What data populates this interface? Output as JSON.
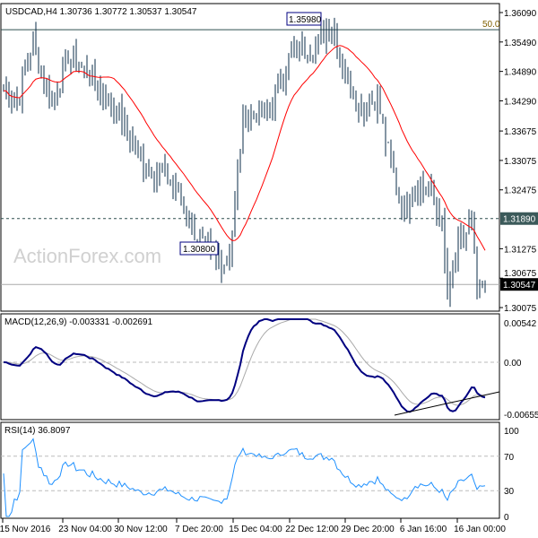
{
  "header": {
    "symbol": "USDCAD,H4",
    "ohlc": "1.30736 1.30772 1.30537 1.30547"
  },
  "watermark": "ActionForex.com",
  "annotations": {
    "high_label": "1.35980",
    "low_label": "1.30800",
    "fib_label": "50.0"
  },
  "colors": {
    "bars": "#0b2d4a",
    "ma": "#ff0000",
    "macd": "#000080",
    "signal": "#aaaaaa",
    "rsi": "#1e90ff"
  },
  "chart_data": {
    "type": "ohlc",
    "title": "USDCAD,H4",
    "price_axis": [
      "1.36090",
      "1.35490",
      "1.34890",
      "1.34290",
      "1.33675",
      "1.33075",
      "1.32475",
      "1.31275",
      "1.30675",
      "1.30075"
    ],
    "price_axis_values": [
      1.3609,
      1.3549,
      1.3489,
      1.3429,
      1.33675,
      1.33075,
      1.32475,
      1.31275,
      1.30675,
      1.30075
    ],
    "ylim": [
      1.3,
      1.3617
    ],
    "levels": {
      "resistance": "1.31890",
      "current": "1.30547",
      "fib_50": 1.3574,
      "resistance_value": 1.3189,
      "current_value": 1.30547
    },
    "close_path": [
      [
        0,
        1.345
      ],
      [
        5,
        1.343
      ],
      [
        11,
        1.355
      ],
      [
        18,
        1.342
      ],
      [
        24,
        1.352
      ],
      [
        32,
        1.348
      ],
      [
        42,
        1.341
      ],
      [
        52,
        1.33
      ],
      [
        62,
        1.327
      ],
      [
        72,
        1.315
      ],
      [
        78,
        1.311
      ],
      [
        83,
        1.31
      ],
      [
        85,
        1.316
      ],
      [
        89,
        1.34
      ],
      [
        99,
        1.341
      ],
      [
        107,
        1.353
      ],
      [
        115,
        1.354
      ],
      [
        122,
        1.358
      ],
      [
        127,
        1.349
      ],
      [
        132,
        1.342
      ],
      [
        139,
        1.343
      ],
      [
        144,
        1.33
      ],
      [
        149,
        1.32
      ],
      [
        153,
        1.326
      ],
      [
        159,
        1.324
      ],
      [
        163,
        1.317
      ],
      [
        165,
        1.303
      ],
      [
        169,
        1.313
      ],
      [
        174,
        1.318
      ],
      [
        176,
        1.303
      ],
      [
        179,
        1.3055
      ]
    ],
    "ma_period": 20,
    "macd": {
      "label": "MACD(12,26,9) -0.003331 -0.002691",
      "axis": [
        "0.00542",
        "0.00",
        "-0.006551"
      ],
      "ylim": [
        -0.006551,
        0.00542
      ]
    },
    "rsi": {
      "label": "RSI(14) 36.8097",
      "axis": [
        "100",
        "70",
        "30",
        "0"
      ],
      "ylim": [
        0,
        100
      ]
    },
    "time_axis": [
      "15 Nov 2016",
      "23 Nov 04:00",
      "30 Nov 12:00",
      "7 Dec 20:00",
      "15 Dec 04:00",
      "22 Dec 12:00",
      "29 Dec 20:00",
      "6 Jan 16:00",
      "16 Jan 00:00"
    ]
  }
}
